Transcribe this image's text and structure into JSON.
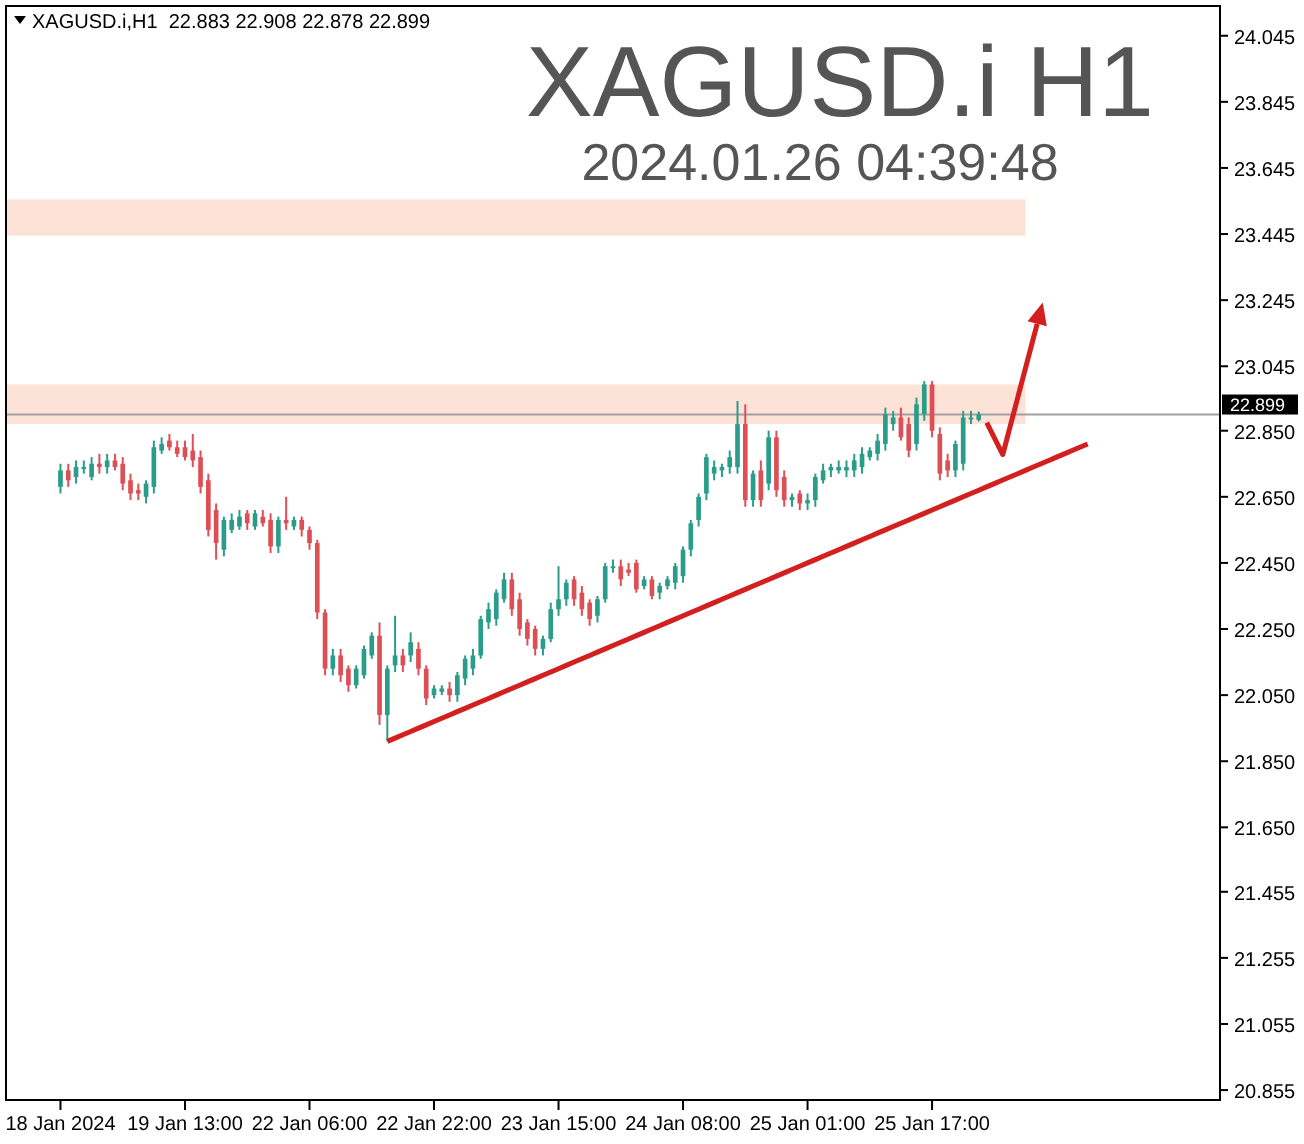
{
  "chart_data": {
    "type": "candlestick",
    "title": "XAGUSD.i H1",
    "subtitle": "2024.01.26 04:39:48",
    "annotations": [
      "XAGUSD.i,H1  22.883 22.908 22.878 22.899"
    ],
    "categories": [
      "18 Jan 2024",
      null,
      null,
      null,
      null,
      null,
      null,
      null,
      null,
      null,
      null,
      null,
      null,
      null,
      null,
      null,
      "19 Jan 13:00",
      null,
      null,
      null,
      null,
      null,
      null,
      null,
      null,
      null,
      null,
      null,
      null,
      null,
      null,
      null,
      "22 Jan 06:00",
      null,
      null,
      null,
      null,
      null,
      null,
      null,
      null,
      null,
      null,
      null,
      null,
      null,
      null,
      null,
      "22 Jan 22:00",
      null,
      null,
      null,
      null,
      null,
      null,
      null,
      null,
      null,
      null,
      null,
      null,
      null,
      null,
      null,
      "23 Jan 15:00",
      null,
      null,
      null,
      null,
      null,
      null,
      null,
      null,
      null,
      null,
      null,
      null,
      null,
      null,
      null,
      "24 Jan 08:00",
      null,
      null,
      null,
      null,
      null,
      null,
      null,
      null,
      null,
      null,
      null,
      null,
      null,
      null,
      null,
      "25 Jan 01:00",
      null,
      null,
      null,
      null,
      null,
      null,
      null,
      null,
      null,
      null,
      null,
      null,
      null,
      null,
      null,
      "25 Jan 17:00",
      null,
      null,
      null,
      null,
      null,
      null,
      null,
      null,
      null,
      null,
      null,
      null,
      null,
      null,
      null,
      null,
      null,
      null,
      null,
      null,
      null,
      null,
      null,
      null,
      null,
      null,
      null,
      null,
      null,
      null,
      null,
      null,
      null,
      null,
      null,
      null,
      null
    ],
    "ylim": [
      20.825,
      24.135
    ],
    "yticks": [
      {
        "value": 24.045,
        "label": "24.045"
      },
      {
        "value": 23.845,
        "label": "23.845"
      },
      {
        "value": 23.645,
        "label": "23.645"
      },
      {
        "value": 23.445,
        "label": "23.445"
      },
      {
        "value": 23.245,
        "label": "23.245"
      },
      {
        "value": 23.045,
        "label": "23.045"
      },
      {
        "value": 22.85,
        "label": "22.850"
      },
      {
        "value": 22.65,
        "label": "22.650"
      },
      {
        "value": 22.45,
        "label": "22.450"
      },
      {
        "value": 22.25,
        "label": "22.250"
      },
      {
        "value": 22.05,
        "label": "22.050"
      },
      {
        "value": 21.85,
        "label": "21.850"
      },
      {
        "value": 21.65,
        "label": "21.650"
      },
      {
        "value": 21.455,
        "label": "21.455"
      },
      {
        "value": 21.255,
        "label": "21.255"
      },
      {
        "value": 21.055,
        "label": "21.055"
      },
      {
        "value": 20.855,
        "label": "20.855"
      }
    ],
    "grid": false,
    "ref_lines": [
      {
        "axis": "y",
        "value": 22.899,
        "label": "22.899",
        "color": "#a0a0a0"
      }
    ],
    "bands": [
      {
        "axis": "y",
        "from": 23.44,
        "to": 23.55,
        "color": "#fde3d7"
      },
      {
        "axis": "y",
        "from": 22.87,
        "to": 22.99,
        "color": "#fde3d7"
      }
    ],
    "series": [
      {
        "colors": [
          "#2a9d8a",
          "#de4f55",
          "#2a9d8a",
          "#2a9d8a",
          "#2a9d8a",
          "#de4f55",
          "#2a9d8a",
          "#de4f55",
          "#de4f55",
          "#de4f55",
          "#de4f55",
          "#2a9d8a",
          "#2a9d8a",
          "#2a9d8a",
          "#de4f55",
          "#de4f55",
          "#de4f55",
          "#de4f55",
          "#de4f55",
          "#de4f55",
          "#de4f55",
          "#2a9d8a",
          "#2a9d8a",
          "#2a9d8a",
          "#de4f55",
          "#2a9d8a",
          "#de4f55",
          "#de4f55",
          "#2a9d8a",
          "#de4f55",
          "#2a9d8a",
          "#de4f55",
          "#de4f55",
          "#de4f55",
          "#de4f55",
          "#2a9d8a",
          "#de4f55",
          "#de4f55",
          "#2a9d8a",
          "#2a9d8a",
          "#2a9d8a",
          "#de4f55",
          "#2a9d8a",
          "#2a9d8a",
          "#de4f55",
          "#2a9d8a",
          "#de4f55",
          "#de4f55",
          "#2a9d8a",
          "#2a9d8a",
          "#de4f55",
          "#2a9d8a",
          "#2a9d8a",
          "#2a9d8a",
          "#2a9d8a",
          "#2a9d8a",
          "#2a9d8a",
          "#2a9d8a",
          "#de4f55",
          "#de4f55",
          "#de4f55",
          "#de4f55",
          "#2a9d8a",
          "#2a9d8a",
          "#2a9d8a",
          "#2a9d8a",
          "#de4f55",
          "#de4f55",
          "#de4f55",
          "#2a9d8a",
          "#2a9d8a",
          "#2a9d8a",
          "#de4f55",
          "#de4f55",
          "#de4f55",
          "#2a9d8a",
          "#de4f55",
          "#2a9d8a",
          "#2a9d8a",
          "#2a9d8a",
          "#2a9d8a",
          "#2a9d8a",
          "#2a9d8a",
          "#2a9d8a",
          "#2a9d8a",
          "#2a9d8a",
          "#2a9d8a",
          "#2a9d8a",
          "#de4f55",
          "#2a9d8a",
          "#de4f55",
          "#2a9d8a",
          "#de4f55",
          "#de4f55",
          "#2a9d8a",
          "#de4f55",
          "#2a9d8a",
          "#2a9d8a",
          "#2a9d8a",
          "#2a9d8a",
          "#2a9d8a",
          "#2a9d8a",
          "#2a9d8a",
          "#2a9d8a",
          "#2a9d8a",
          "#2a9d8a",
          "#2a9d8a",
          "#2a9d8a",
          "#de4f55",
          "#de4f55",
          "#2a9d8a",
          "#2a9d8a",
          "#de4f55",
          "#de4f55",
          "#de4f55",
          "#2a9d8a",
          "#2a9d8a",
          "#2a9d8a",
          "#2a9d8a",
          null,
          null,
          null,
          null,
          null,
          null,
          null,
          null,
          null,
          null,
          null,
          null,
          null,
          null,
          null,
          null,
          null,
          null,
          null,
          null,
          null,
          null,
          null,
          null,
          null,
          null,
          null,
          null,
          null,
          null,
          null
        ],
        "ohlc": [
          [
            22.68,
            22.75,
            22.66,
            22.73
          ],
          [
            22.73,
            22.75,
            22.68,
            22.7
          ],
          [
            22.71,
            22.76,
            22.69,
            22.74
          ],
          [
            22.74,
            22.76,
            22.72,
            22.74
          ],
          [
            22.71,
            22.77,
            22.7,
            22.75
          ],
          [
            22.75,
            22.78,
            22.72,
            22.74
          ],
          [
            22.74,
            22.78,
            22.72,
            22.76
          ],
          [
            22.76,
            22.78,
            22.73,
            22.74
          ],
          [
            22.75,
            22.77,
            22.67,
            22.69
          ],
          [
            22.7,
            22.72,
            22.64,
            22.66
          ],
          [
            22.67,
            22.69,
            22.64,
            22.66
          ],
          [
            22.65,
            22.7,
            22.63,
            22.69
          ],
          [
            22.68,
            22.82,
            22.66,
            22.8
          ],
          [
            22.79,
            22.83,
            22.78,
            22.81
          ],
          [
            22.82,
            22.84,
            22.79,
            22.8
          ],
          [
            22.8,
            22.82,
            22.77,
            22.78
          ],
          [
            22.8,
            22.82,
            22.76,
            22.77
          ],
          [
            22.79,
            22.84,
            22.74,
            22.76
          ],
          [
            22.77,
            22.79,
            22.66,
            22.68
          ],
          [
            22.7,
            22.72,
            22.53,
            22.55
          ],
          [
            22.61,
            22.63,
            22.46,
            22.51
          ],
          [
            22.49,
            22.59,
            22.47,
            22.58
          ],
          [
            22.55,
            22.6,
            22.54,
            22.58
          ],
          [
            22.56,
            22.61,
            22.55,
            22.59
          ],
          [
            22.6,
            22.61,
            22.55,
            22.57
          ],
          [
            22.56,
            22.61,
            22.55,
            22.6
          ],
          [
            22.59,
            22.61,
            22.56,
            22.57
          ],
          [
            22.58,
            22.6,
            22.48,
            22.5
          ],
          [
            22.5,
            22.59,
            22.48,
            22.58
          ],
          [
            22.58,
            22.65,
            22.55,
            22.57
          ],
          [
            22.56,
            22.59,
            22.55,
            22.58
          ],
          [
            22.58,
            22.59,
            22.53,
            22.55
          ],
          [
            22.55,
            22.56,
            22.49,
            22.51
          ],
          [
            22.51,
            22.52,
            22.28,
            22.3
          ],
          [
            22.3,
            22.31,
            22.11,
            22.13
          ],
          [
            22.13,
            22.19,
            22.11,
            22.17
          ],
          [
            22.17,
            22.19,
            22.09,
            22.11
          ],
          [
            22.13,
            22.14,
            22.06,
            22.08
          ],
          [
            22.08,
            22.14,
            22.07,
            22.13
          ],
          [
            22.11,
            22.2,
            22.1,
            22.19
          ],
          [
            22.17,
            22.24,
            22.16,
            22.23
          ],
          [
            22.23,
            22.27,
            21.96,
            21.99
          ],
          [
            21.99,
            22.14,
            21.91,
            22.13
          ],
          [
            22.14,
            22.29,
            22.12,
            22.17
          ],
          [
            22.17,
            22.19,
            22.12,
            22.14
          ],
          [
            22.17,
            22.24,
            22.15,
            22.21
          ],
          [
            22.19,
            22.21,
            22.11,
            22.13
          ],
          [
            22.13,
            22.14,
            22.02,
            22.04
          ],
          [
            22.05,
            22.08,
            22.04,
            22.07
          ],
          [
            22.06,
            22.08,
            22.05,
            22.07
          ],
          [
            22.07,
            22.09,
            22.03,
            22.05
          ],
          [
            22.05,
            22.12,
            22.03,
            22.11
          ],
          [
            22.1,
            22.17,
            22.08,
            22.16
          ],
          [
            22.13,
            22.19,
            22.11,
            22.17
          ],
          [
            22.17,
            22.29,
            22.16,
            22.28
          ],
          [
            22.27,
            22.33,
            22.25,
            22.31
          ],
          [
            22.28,
            22.37,
            22.26,
            22.36
          ],
          [
            22.34,
            22.42,
            22.33,
            22.4
          ],
          [
            22.4,
            22.42,
            22.29,
            22.31
          ],
          [
            22.34,
            22.36,
            22.23,
            22.25
          ],
          [
            22.27,
            22.28,
            22.2,
            22.22
          ],
          [
            22.25,
            22.26,
            22.17,
            22.19
          ],
          [
            22.19,
            22.23,
            22.17,
            22.22
          ],
          [
            22.22,
            22.33,
            22.21,
            22.31
          ],
          [
            22.31,
            22.44,
            22.29,
            22.34
          ],
          [
            22.34,
            22.4,
            22.32,
            22.39
          ],
          [
            22.4,
            22.41,
            22.32,
            22.34
          ],
          [
            22.36,
            22.38,
            22.29,
            22.31
          ],
          [
            22.33,
            22.34,
            22.26,
            22.28
          ],
          [
            22.29,
            22.35,
            22.27,
            22.34
          ],
          [
            22.34,
            22.45,
            22.33,
            22.44
          ],
          [
            22.44,
            22.46,
            22.42,
            22.44
          ],
          [
            22.44,
            22.46,
            22.38,
            22.4
          ],
          [
            22.43,
            22.45,
            22.41,
            22.42
          ],
          [
            22.45,
            22.46,
            22.36,
            22.37
          ],
          [
            22.38,
            22.41,
            22.37,
            22.4
          ],
          [
            22.4,
            22.41,
            22.34,
            22.35
          ],
          [
            22.36,
            22.39,
            22.34,
            22.38
          ],
          [
            22.38,
            22.41,
            22.37,
            22.4
          ],
          [
            22.39,
            22.45,
            22.37,
            22.44
          ],
          [
            22.41,
            22.5,
            22.39,
            22.49
          ],
          [
            22.49,
            22.58,
            22.47,
            22.57
          ],
          [
            22.58,
            22.66,
            22.56,
            22.65
          ],
          [
            22.66,
            22.78,
            22.64,
            22.77
          ],
          [
            22.72,
            22.76,
            22.7,
            22.74
          ],
          [
            22.73,
            22.75,
            22.71,
            22.74
          ],
          [
            22.74,
            22.79,
            22.72,
            22.77
          ],
          [
            22.74,
            22.94,
            22.72,
            22.87
          ],
          [
            22.87,
            22.93,
            22.62,
            22.64
          ],
          [
            22.64,
            22.73,
            22.62,
            22.72
          ],
          [
            22.73,
            22.76,
            22.62,
            22.64
          ],
          [
            22.69,
            22.85,
            22.67,
            22.83
          ],
          [
            22.83,
            22.85,
            22.65,
            22.67
          ],
          [
            22.71,
            22.73,
            22.62,
            22.64
          ],
          [
            22.64,
            22.66,
            22.62,
            22.65
          ],
          [
            22.66,
            22.67,
            22.61,
            22.63
          ],
          [
            22.63,
            22.66,
            22.61,
            22.64
          ],
          [
            22.64,
            22.72,
            22.62,
            22.71
          ],
          [
            22.7,
            22.75,
            22.69,
            22.73
          ],
          [
            22.73,
            22.75,
            22.71,
            22.74
          ],
          [
            22.73,
            22.76,
            22.72,
            22.74
          ],
          [
            22.73,
            22.76,
            22.71,
            22.74
          ],
          [
            22.73,
            22.78,
            22.71,
            22.76
          ],
          [
            22.74,
            22.8,
            22.72,
            22.78
          ],
          [
            22.77,
            22.8,
            22.76,
            22.79
          ],
          [
            22.78,
            22.84,
            22.76,
            22.82
          ],
          [
            22.81,
            22.92,
            22.79,
            22.9
          ],
          [
            22.87,
            22.91,
            22.85,
            22.89
          ],
          [
            22.89,
            22.92,
            22.82,
            22.83
          ],
          [
            22.87,
            22.89,
            22.77,
            22.79
          ],
          [
            22.81,
            22.95,
            22.79,
            22.93
          ],
          [
            22.9,
            23.0,
            22.88,
            22.99
          ],
          [
            22.99,
            23.0,
            22.83,
            22.85
          ],
          [
            22.84,
            22.86,
            22.7,
            22.72
          ],
          [
            22.76,
            22.78,
            22.71,
            22.73
          ],
          [
            22.73,
            22.82,
            22.71,
            22.81
          ],
          [
            22.75,
            22.91,
            22.73,
            22.89
          ],
          [
            22.89,
            22.91,
            22.87,
            22.89
          ],
          [
            22.883,
            22.908,
            22.878,
            22.899
          ],
          null,
          null,
          null,
          null,
          null,
          null,
          null,
          null,
          null,
          null,
          null,
          null,
          null,
          null,
          null,
          null,
          null,
          null,
          null,
          null,
          null,
          null,
          null,
          null,
          null,
          null,
          null,
          null,
          null,
          null,
          null
        ]
      },
      {
        "type": "line",
        "color": "#d41f1f",
        "values": [
          null,
          null,
          null,
          null,
          null,
          null,
          null,
          null,
          null,
          null,
          null,
          null,
          null,
          null,
          null,
          null,
          null,
          null,
          null,
          null,
          null,
          null,
          null,
          null,
          null,
          null,
          null,
          null,
          null,
          null,
          null,
          null,
          null,
          null,
          null,
          null,
          null,
          null,
          null,
          null,
          null,
          null,
          21.91,
          21.92,
          21.93,
          21.94,
          21.95,
          21.96,
          21.97,
          21.98,
          21.99,
          22.0,
          22.01,
          22.02,
          22.03,
          22.04,
          22.05,
          22.06,
          22.07,
          22.08,
          22.09,
          22.1,
          22.11,
          22.12,
          22.13,
          22.14,
          22.15,
          22.16,
          22.17,
          22.18,
          22.19,
          22.2,
          22.21,
          22.22,
          22.23,
          22.24,
          22.25,
          22.26,
          22.27,
          22.28,
          22.29,
          22.3,
          22.31,
          22.32,
          22.33,
          22.34,
          22.35,
          22.36,
          22.37,
          22.38,
          22.39,
          22.4,
          22.41,
          22.42,
          22.43,
          22.44,
          22.45,
          22.46,
          22.47,
          22.48,
          22.49,
          22.5,
          22.51,
          22.52,
          22.53,
          22.54,
          22.55,
          22.56,
          22.57,
          22.58,
          22.59,
          22.6,
          22.61,
          22.62,
          22.63,
          22.64,
          22.65,
          22.66,
          22.67,
          22.68,
          22.69,
          22.7,
          22.71,
          22.72,
          22.73,
          22.74,
          22.75,
          22.76,
          22.77,
          22.78,
          22.79,
          22.8,
          22.81,
          null,
          null,
          null,
          null,
          null,
          null,
          null,
          null,
          null,
          null,
          null,
          null,
          null,
          null,
          null,
          null,
          null
        ]
      }
    ]
  }
}
